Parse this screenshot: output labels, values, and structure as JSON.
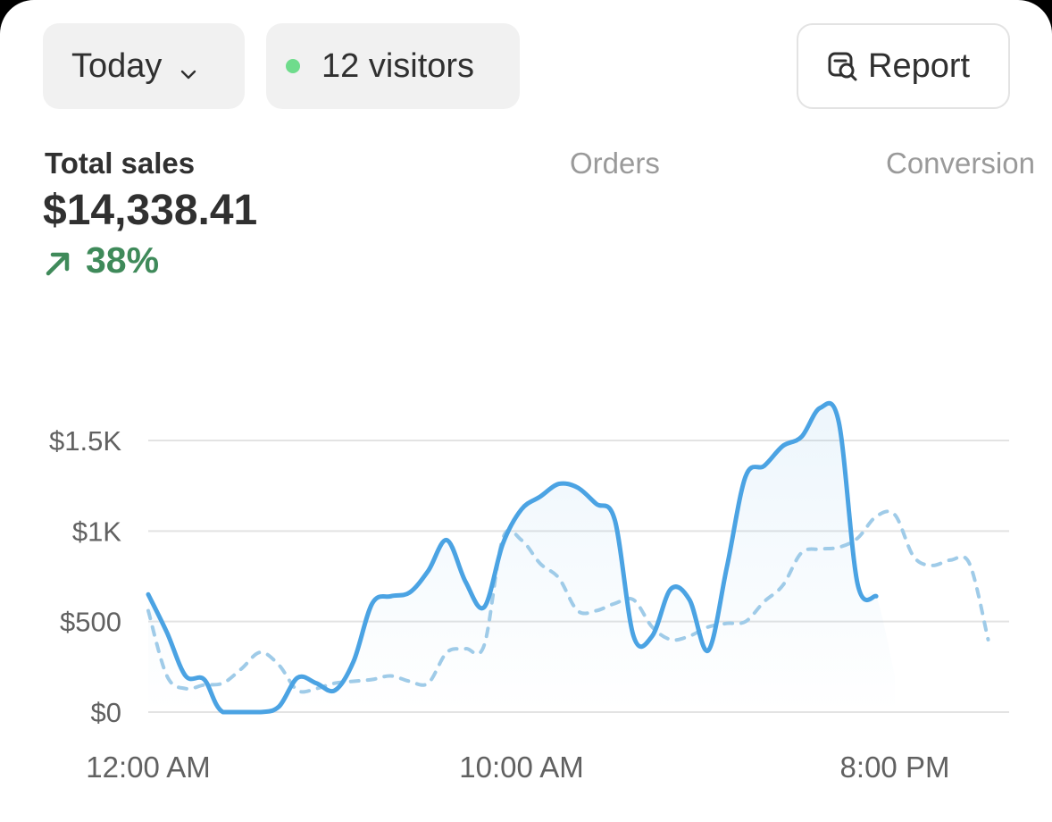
{
  "header": {
    "date_filter": "Today",
    "visitors_label": "12 visitors",
    "report_label": "Report"
  },
  "metrics": {
    "tabs": [
      {
        "label": "Total sales",
        "active": true
      },
      {
        "label": "Orders",
        "active": false
      },
      {
        "label": "Conversion",
        "active": false
      }
    ],
    "value": "$14,338.41",
    "change": "38%"
  },
  "colors": {
    "accent": "#4ba3e3",
    "comparison": "#9fcbe8",
    "positive": "#3f8a5a",
    "live_dot": "#6fdc8c",
    "grid": "#e3e3e3"
  },
  "icons": {
    "dropdown": "chevron-down-icon",
    "live": "status-dot-icon",
    "report": "report-search-icon",
    "trend": "arrow-up-right-icon"
  },
  "chart_data": {
    "type": "line",
    "y_ticks": [
      "$0",
      "$500",
      "$1K",
      "$1.5K"
    ],
    "ylim": [
      0,
      1500
    ],
    "x_tick_labels": [
      "12:00 AM",
      "10:00 AM",
      "8:00 PM"
    ],
    "x_tick_hours": [
      0,
      10,
      20
    ],
    "grid": true,
    "series": [
      {
        "style": "solid",
        "area_fill": true,
        "points": [
          [
            0,
            650
          ],
          [
            0.5,
            440
          ],
          [
            1,
            200
          ],
          [
            1.5,
            180
          ],
          [
            2,
            0
          ],
          [
            3,
            0
          ],
          [
            3.5,
            30
          ],
          [
            4,
            190
          ],
          [
            4.5,
            160
          ],
          [
            5,
            120
          ],
          [
            5.5,
            280
          ],
          [
            6,
            600
          ],
          [
            6.5,
            640
          ],
          [
            7,
            660
          ],
          [
            7.5,
            780
          ],
          [
            8,
            950
          ],
          [
            8.5,
            720
          ],
          [
            9,
            580
          ],
          [
            9.5,
            930
          ],
          [
            10,
            1120
          ],
          [
            10.5,
            1190
          ],
          [
            11,
            1260
          ],
          [
            11.5,
            1240
          ],
          [
            12,
            1150
          ],
          [
            12.5,
            1060
          ],
          [
            13,
            420
          ],
          [
            13.5,
            420
          ],
          [
            14,
            680
          ],
          [
            14.5,
            620
          ],
          [
            15,
            340
          ],
          [
            15.5,
            800
          ],
          [
            16,
            1300
          ],
          [
            16.5,
            1360
          ],
          [
            17,
            1470
          ],
          [
            17.5,
            1520
          ],
          [
            18,
            1680
          ],
          [
            18.5,
            1600
          ],
          [
            19,
            710
          ],
          [
            19.5,
            640
          ]
        ]
      },
      {
        "style": "dotted-tail",
        "points": [
          [
            19.5,
            640
          ],
          [
            20,
            200
          ]
        ]
      },
      {
        "style": "dashed",
        "points": [
          [
            0,
            560
          ],
          [
            0.5,
            200
          ],
          [
            1,
            130
          ],
          [
            1.5,
            150
          ],
          [
            2,
            160
          ],
          [
            2.5,
            240
          ],
          [
            3,
            330
          ],
          [
            3.5,
            260
          ],
          [
            4,
            120
          ],
          [
            4.5,
            130
          ],
          [
            5,
            160
          ],
          [
            5.5,
            170
          ],
          [
            6,
            180
          ],
          [
            6.5,
            200
          ],
          [
            7,
            170
          ],
          [
            7.5,
            160
          ],
          [
            8,
            330
          ],
          [
            8.5,
            350
          ],
          [
            9,
            370
          ],
          [
            9.5,
            960
          ],
          [
            10,
            950
          ],
          [
            10.5,
            820
          ],
          [
            11,
            740
          ],
          [
            11.5,
            560
          ],
          [
            12,
            560
          ],
          [
            12.5,
            600
          ],
          [
            13,
            620
          ],
          [
            13.5,
            470
          ],
          [
            14,
            400
          ],
          [
            14.5,
            420
          ],
          [
            15,
            470
          ],
          [
            15.5,
            490
          ],
          [
            16,
            500
          ],
          [
            16.5,
            610
          ],
          [
            17,
            700
          ],
          [
            17.5,
            880
          ],
          [
            18,
            900
          ],
          [
            18.5,
            910
          ],
          [
            19,
            960
          ],
          [
            19.5,
            1080
          ],
          [
            20,
            1090
          ],
          [
            20.5,
            860
          ],
          [
            21,
            810
          ],
          [
            21.5,
            840
          ],
          [
            22,
            820
          ],
          [
            22.5,
            400
          ]
        ]
      }
    ]
  }
}
